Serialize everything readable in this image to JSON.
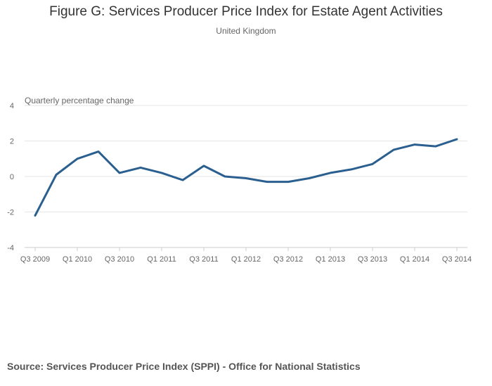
{
  "chart_data": {
    "type": "line",
    "title": "Figure G: Services Producer Price Index for Estate Agent Activities",
    "subtitle": "United Kingdom",
    "ylabel": "Quarterly percentage change",
    "xlabel": "",
    "ylim": [
      -4,
      4
    ],
    "yticks": [
      4,
      2,
      0,
      -2,
      -4
    ],
    "ytick_labels": [
      "4",
      "2",
      "0",
      "-2",
      "-4"
    ],
    "categories": [
      "Q3 2009",
      "Q4 2009",
      "Q1 2010",
      "Q2 2010",
      "Q3 2010",
      "Q4 2010",
      "Q1 2011",
      "Q2 2011",
      "Q3 2011",
      "Q4 2011",
      "Q1 2012",
      "Q2 2012",
      "Q3 2012",
      "Q4 2012",
      "Q1 2013",
      "Q2 2013",
      "Q3 2013",
      "Q4 2013",
      "Q1 2014",
      "Q2 2014",
      "Q3 2014"
    ],
    "xtick_labels": [
      "Q3 2009",
      "Q1 2010",
      "Q3 2010",
      "Q1 2011",
      "Q3 2011",
      "Q1 2012",
      "Q3 2012",
      "Q1 2013",
      "Q3 2013",
      "Q1 2014",
      "Q3 2014"
    ],
    "series": [
      {
        "name": "Quarterly percentage change",
        "color": "#2a5f8f",
        "values": [
          -2.2,
          0.1,
          1.0,
          1.4,
          0.2,
          0.5,
          0.2,
          -0.2,
          0.6,
          0.0,
          -0.1,
          -0.3,
          -0.3,
          -0.1,
          0.2,
          0.4,
          0.7,
          1.5,
          1.8,
          1.7,
          2.1
        ]
      }
    ],
    "grid": true
  },
  "footer": {
    "source": "Source: Services Producer Price Index (SPPI) - Office for National Statistics"
  },
  "colors": {
    "gridline": "#e6e6e6",
    "axis": "#cccccc",
    "text": "#666666"
  }
}
